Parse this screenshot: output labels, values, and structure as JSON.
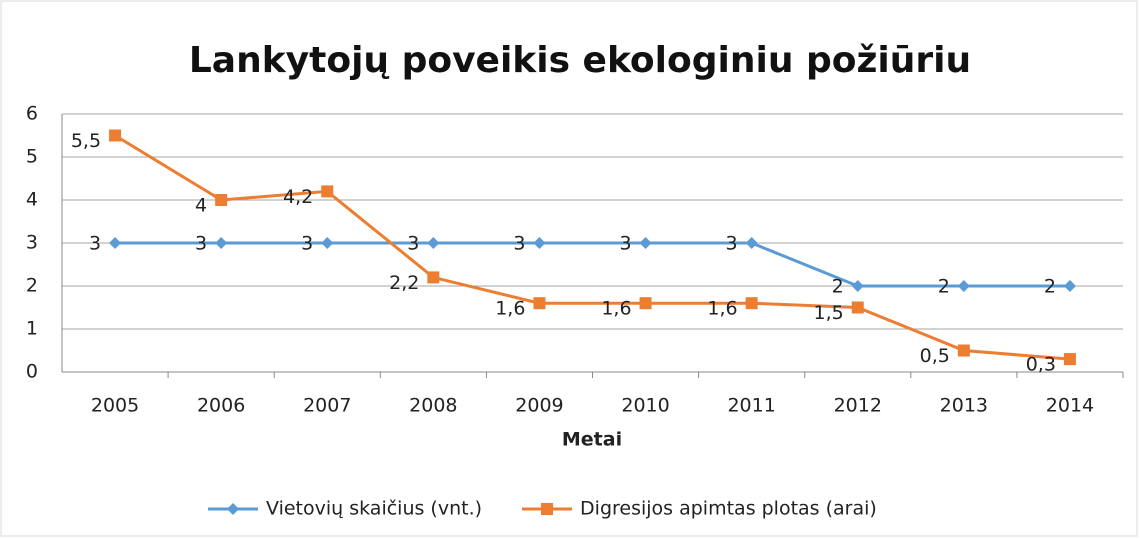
{
  "chart_data": {
    "type": "line",
    "title": "Lankytojų poveikis ekologiniu požiūriu",
    "x_label": "Metai",
    "categories": [
      "2005",
      "2006",
      "2007",
      "2008",
      "2009",
      "2010",
      "2011",
      "2012",
      "2013",
      "2014"
    ],
    "series": [
      {
        "name": "Vietovių skaičius (vnt.)",
        "color": "#5b9bd5",
        "marker": "diamond",
        "values": [
          3,
          3,
          3,
          3,
          3,
          3,
          3,
          2,
          2,
          2
        ]
      },
      {
        "name": "Digresijos apimtas plotas (arai)",
        "color": "#ed7d31",
        "marker": "square",
        "values": [
          5.5,
          4,
          4.2,
          2.2,
          1.6,
          1.6,
          1.6,
          1.5,
          0.5,
          0.3
        ],
        "value_labels": [
          "5,5",
          "4",
          "4,2",
          "2,2",
          "1,6",
          "1,6",
          "1,6",
          "1,5",
          "0,5",
          "0,3"
        ]
      }
    ],
    "ylim": [
      0,
      6
    ],
    "yticks": [
      0,
      1,
      2,
      3,
      4,
      5,
      6
    ],
    "grid": true,
    "legend": "bottom"
  }
}
